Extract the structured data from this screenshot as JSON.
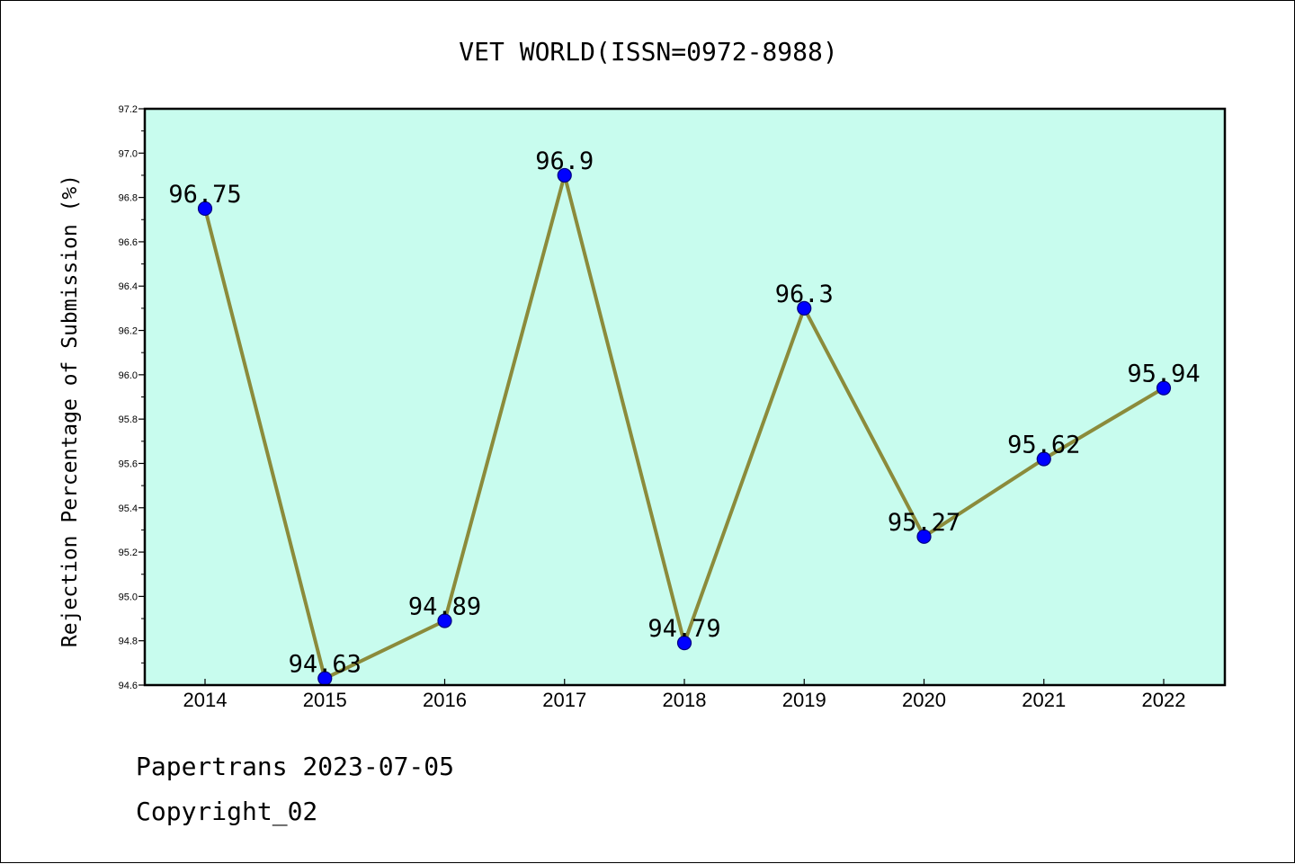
{
  "chart_data": {
    "type": "line",
    "title": "VET WORLD(ISSN=0972-8988)",
    "xlabel": "",
    "ylabel": "Rejection Percentage of Submission (%)",
    "categories": [
      "2014",
      "2015",
      "2016",
      "2017",
      "2018",
      "2019",
      "2020",
      "2021",
      "2022"
    ],
    "series": [
      {
        "values": [
          96.75,
          94.63,
          94.89,
          96.9,
          94.79,
          96.3,
          95.27,
          95.62,
          95.94
        ],
        "data_labels": [
          "96.75",
          "94.63",
          "94.89",
          "96.9",
          "94.79",
          "96.3",
          "95.27",
          "95.62",
          "95.94"
        ]
      }
    ],
    "ylim": [
      94.6,
      97.2
    ],
    "yticks": [
      "94.6",
      "94.8",
      "95.0",
      "95.2",
      "95.4",
      "95.6",
      "95.8",
      "96.0",
      "96.2",
      "96.4",
      "96.6",
      "96.8",
      "97.0",
      "97.2"
    ],
    "grid": false,
    "legend": "none",
    "colors": {
      "plot_background": "#c8fcee",
      "line": "#8b8b3b",
      "marker": "#0000ff",
      "marker_edge": "#000080"
    }
  },
  "footer": {
    "date_line": "Papertrans 2023-07-05",
    "copyright": "Copyright_02"
  }
}
